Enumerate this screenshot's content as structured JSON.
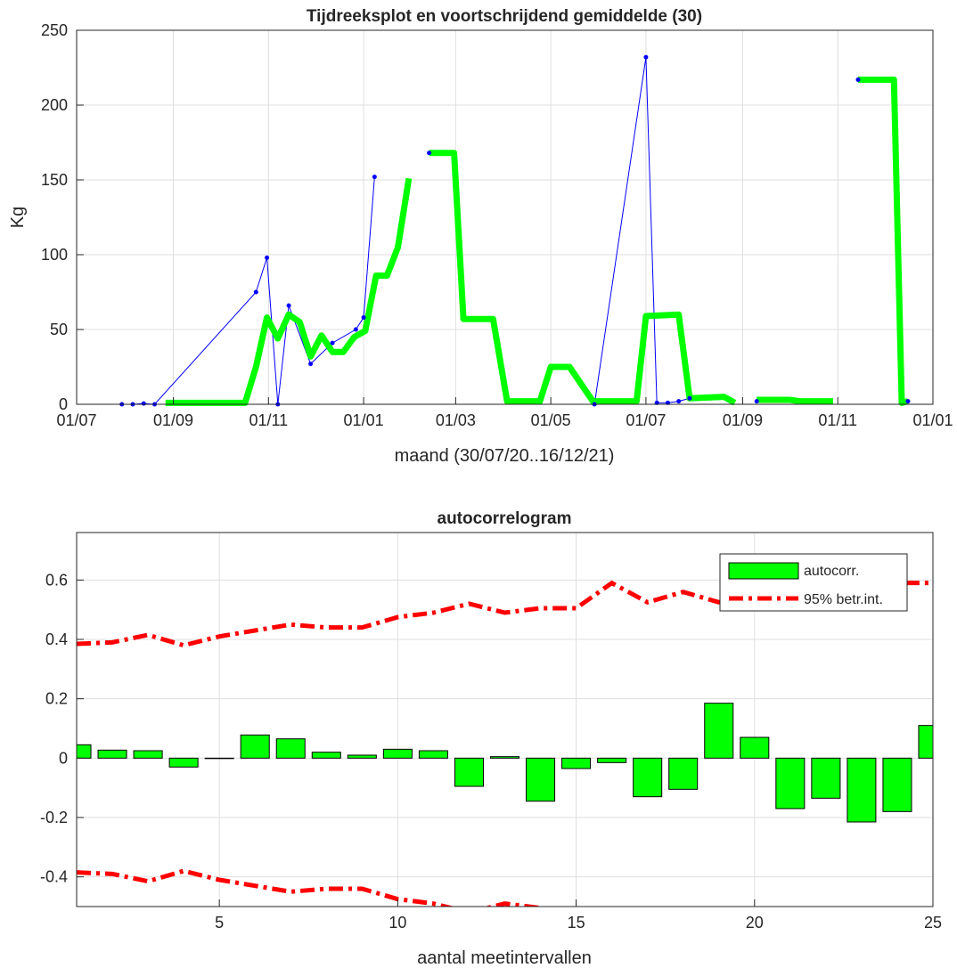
{
  "chart_data": [
    {
      "type": "line",
      "title": "Tijdreeksplot en voortschrijdend gemiddelde (30)",
      "xlabel": "maand (30/07/20..16/12/21)",
      "ylabel": "Kg",
      "xlim": [
        "2020-07-01",
        "2022-01-01"
      ],
      "ylim": [
        0,
        250
      ],
      "grid": true,
      "x_ticks": [
        "2020-07-01",
        "2020-09-01",
        "2020-11-01",
        "2021-01-01",
        "2021-03-01",
        "2021-05-01",
        "2021-07-01",
        "2021-09-01",
        "2021-11-01",
        "2022-01-01"
      ],
      "x_tick_labels": [
        "01/07",
        "01/09",
        "01/11",
        "01/01",
        "01/03",
        "01/05",
        "01/07",
        "01/09",
        "01/11",
        "01/01"
      ],
      "y_ticks": [
        0,
        50,
        100,
        150,
        200,
        250
      ],
      "series": [
        {
          "role": "raw",
          "color": "#0000ff",
          "segments": [
            [
              [
                "2020-07-30",
                0
              ],
              [
                "2020-08-06",
                0
              ],
              [
                "2020-08-13",
                0.5
              ],
              [
                "2020-08-20",
                0
              ],
              [
                "2020-10-24",
                75
              ],
              [
                "2020-10-31",
                98
              ],
              [
                "2020-11-07",
                0
              ],
              [
                "2020-11-14",
                66
              ],
              [
                "2020-11-28",
                27
              ],
              [
                "2020-12-12",
                41
              ],
              [
                "2020-12-27",
                50
              ],
              [
                "2021-01-01",
                58
              ],
              [
                "2021-01-08",
                152
              ]
            ],
            [
              [
                "2021-02-12",
                168
              ]
            ],
            [
              [
                "2021-05-29",
                0
              ],
              [
                "2021-07-01",
                232
              ],
              [
                "2021-07-08",
                1
              ],
              [
                "2021-07-15",
                1
              ],
              [
                "2021-07-22",
                2
              ],
              [
                "2021-07-29",
                4
              ]
            ],
            [
              [
                "2021-09-10",
                2
              ]
            ],
            [
              [
                "2021-11-14",
                217
              ]
            ],
            [
              [
                "2021-12-16",
                2
              ]
            ]
          ]
        },
        {
          "role": "moving-average",
          "color": "#00ff00",
          "segments": [
            [
              [
                "2020-08-27",
                1
              ],
              [
                "2020-10-17",
                1
              ],
              [
                "2020-10-24",
                25
              ],
              [
                "2020-10-31",
                58
              ],
              [
                "2020-11-07",
                44
              ],
              [
                "2020-11-14",
                60
              ],
              [
                "2020-11-21",
                55
              ],
              [
                "2020-11-28",
                32
              ],
              [
                "2020-12-05",
                46
              ],
              [
                "2020-12-12",
                35
              ],
              [
                "2020-12-19",
                35
              ],
              [
                "2020-12-26",
                45
              ],
              [
                "2021-01-02",
                49
              ],
              [
                "2021-01-09",
                86
              ],
              [
                "2021-01-16",
                86
              ],
              [
                "2021-01-23",
                105
              ],
              [
                "2021-01-30",
                151
              ]
            ],
            [
              [
                "2021-02-12",
                168
              ],
              [
                "2021-02-28",
                168
              ],
              [
                "2021-03-06",
                57
              ],
              [
                "2021-03-25",
                57
              ],
              [
                "2021-04-03",
                2
              ],
              [
                "2021-04-24",
                2
              ],
              [
                "2021-05-01",
                25
              ],
              [
                "2021-05-13",
                25
              ],
              [
                "2021-05-28",
                2
              ],
              [
                "2021-06-18",
                2
              ],
              [
                "2021-06-25",
                2
              ],
              [
                "2021-07-01",
                59
              ],
              [
                "2021-07-22",
                60
              ],
              [
                "2021-07-29",
                4
              ],
              [
                "2021-08-20",
                5
              ],
              [
                "2021-08-27",
                1
              ]
            ],
            [
              [
                "2021-09-10",
                3
              ],
              [
                "2021-10-01",
                3
              ],
              [
                "2021-10-08",
                2
              ],
              [
                "2021-10-29",
                2
              ]
            ],
            [
              [
                "2021-11-14",
                217
              ],
              [
                "2021-12-07",
                217
              ],
              [
                "2021-12-12",
                1
              ],
              [
                "2021-12-16",
                2
              ]
            ]
          ]
        }
      ]
    },
    {
      "type": "bar",
      "title": "autocorrelogram",
      "xlabel": "aantal meetintervallen",
      "ylabel": "",
      "xlim": [
        1,
        25
      ],
      "ylim": [
        -0.5,
        0.76
      ],
      "grid": true,
      "legend_position": "top-right",
      "x_ticks": [
        5,
        10,
        15,
        20,
        25
      ],
      "y_ticks": [
        -0.4,
        -0.2,
        0,
        0.2,
        0.4,
        0.6
      ],
      "y_tick_labels": [
        "-0.4",
        "-0.2",
        "0",
        "0.2",
        "0.4",
        "0.6"
      ],
      "categories": [
        1,
        2,
        3,
        4,
        5,
        6,
        7,
        8,
        9,
        10,
        11,
        12,
        13,
        14,
        15,
        16,
        17,
        18,
        19,
        20,
        21,
        22,
        23,
        24,
        25
      ],
      "series": [
        {
          "name": "autocorr.",
          "color": "#00ff00",
          "values": [
            0.045,
            0.027,
            0.025,
            -0.03,
            0,
            0.078,
            0.065,
            0.02,
            0.01,
            0.03,
            0.025,
            -0.095,
            0.005,
            -0.145,
            -0.035,
            -0.015,
            -0.13,
            -0.105,
            0.185,
            0.07,
            -0.17,
            -0.135,
            -0.215,
            -0.18,
            0.11
          ]
        },
        {
          "name": "95% betr.int.",
          "color": "#ff0000",
          "type": "line",
          "upper": [
            0.385,
            0.39,
            0.415,
            0.38,
            0.41,
            0.43,
            0.45,
            0.44,
            0.44,
            0.475,
            0.49,
            0.52,
            0.49,
            0.505,
            0.505,
            0.59,
            0.525,
            0.56,
            0.525,
            0.54,
            0.58,
            0.58,
            0.585,
            0.59,
            0.59
          ],
          "lower_segment": [
            [
              1,
              -0.385
            ],
            [
              2,
              -0.39
            ],
            [
              3,
              -0.415
            ],
            [
              4,
              -0.38
            ],
            [
              5,
              -0.41
            ],
            [
              6,
              -0.43
            ],
            [
              7,
              -0.45
            ],
            [
              8,
              -0.44
            ],
            [
              9,
              -0.44
            ],
            [
              10,
              -0.475
            ],
            [
              11,
              -0.49
            ],
            [
              12,
              -0.52
            ],
            [
              13,
              -0.49
            ],
            [
              14,
              -0.505
            ]
          ]
        }
      ]
    }
  ]
}
